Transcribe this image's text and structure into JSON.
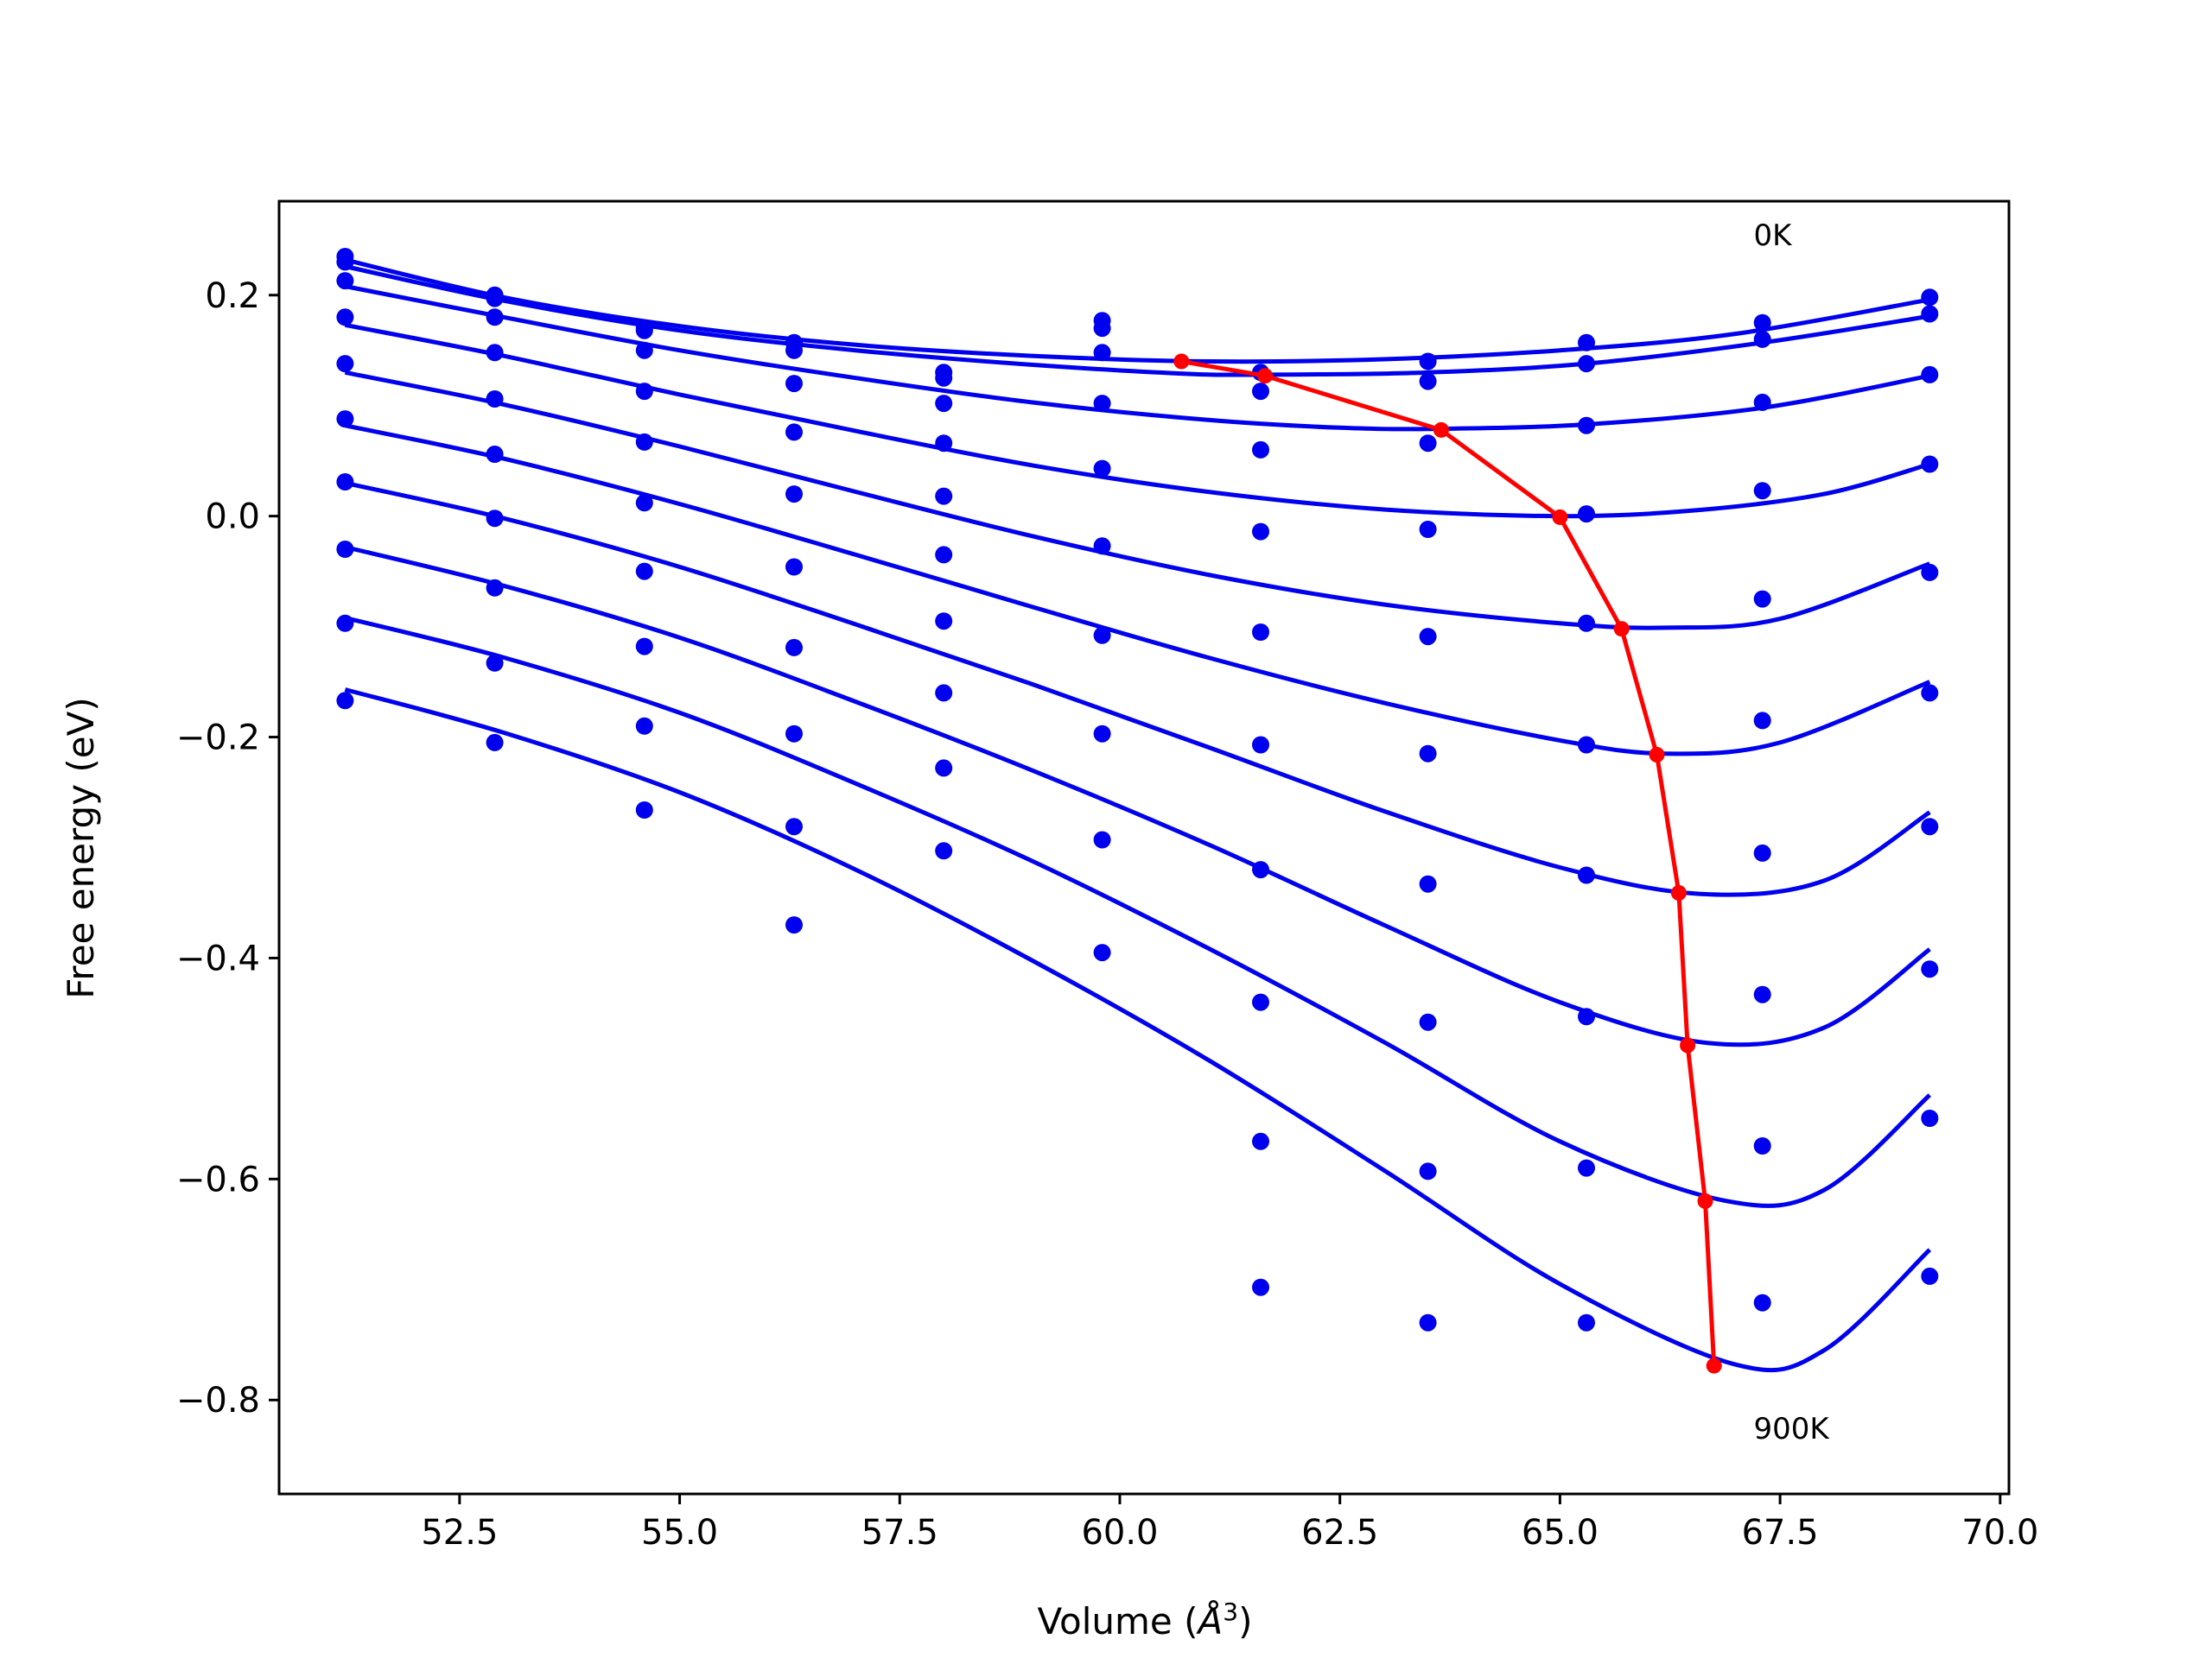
{
  "chart_data": {
    "type": "scatter",
    "title": "",
    "xlabel": "Volume (",
    "xlabel_unit": "Å",
    "xlabel_exp": "3",
    "xlabel_close": ")",
    "ylabel": "Free energy (eV)",
    "xlim": [
      50.45,
      70.1
    ],
    "ylim": [
      -0.885,
      0.285
    ],
    "xticks": [
      52.5,
      55.0,
      57.5,
      60.0,
      62.5,
      65.0,
      67.5,
      70.0
    ],
    "xtick_labels": [
      "52.5",
      "55.0",
      "57.5",
      "60.0",
      "62.5",
      "65.0",
      "67.5",
      "70.0"
    ],
    "yticks": [
      0.2,
      0.0,
      -0.2,
      -0.4,
      -0.6,
      -0.8
    ],
    "ytick_labels": [
      "0.2",
      "0.0",
      "−0.2",
      "−0.4",
      "−0.6",
      "−0.8"
    ],
    "grid": false,
    "colors": {
      "points": "#0000ee",
      "fits": "#0000ee",
      "minima": "#ff0000"
    },
    "annotations": [
      {
        "text": "0K",
        "x": 67.2,
        "y": 0.245
      },
      {
        "text": "900K",
        "x": 67.2,
        "y": -0.835
      }
    ],
    "volumes": [
      51.2,
      52.9,
      54.6,
      56.3,
      58.0,
      59.8,
      61.6,
      63.5,
      65.3,
      67.3,
      69.2
    ],
    "point_series": [
      [
        0.235,
        0.2,
        0.17,
        0.157,
        0.13,
        0.177,
        0.13,
        0.14,
        0.157,
        0.175,
        0.198
      ],
      [
        0.23,
        0.197,
        0.168,
        0.15,
        0.125,
        0.17,
        0.113,
        0.122,
        0.138,
        0.16,
        0.183
      ],
      [
        0.213,
        0.18,
        0.15,
        0.12,
        0.102,
        0.148,
        0.06,
        0.066,
        0.082,
        0.103,
        0.128
      ],
      [
        0.18,
        0.148,
        0.113,
        0.076,
        0.066,
        0.102,
        -0.014,
        -0.012,
        0.002,
        0.023,
        0.047
      ],
      [
        0.138,
        0.106,
        0.067,
        0.02,
        0.018,
        0.043,
        -0.105,
        -0.109,
        -0.097,
        -0.075,
        -0.051
      ],
      [
        0.088,
        0.056,
        0.012,
        -0.046,
        -0.035,
        -0.027,
        -0.207,
        -0.215,
        -0.207,
        -0.185,
        -0.16
      ],
      [
        0.031,
        -0.002,
        -0.05,
        -0.119,
        -0.095,
        -0.108,
        -0.32,
        -0.333,
        -0.325,
        -0.305,
        -0.281
      ],
      [
        -0.03,
        -0.065,
        -0.118,
        -0.197,
        -0.16,
        -0.197,
        -0.44,
        -0.458,
        -0.453,
        -0.433,
        -0.41
      ],
      [
        -0.097,
        -0.133,
        -0.19,
        -0.281,
        -0.228,
        -0.293,
        -0.566,
        -0.593,
        -0.59,
        -0.57,
        -0.545
      ],
      [
        -0.167,
        -0.205,
        -0.266,
        -0.37,
        -0.303,
        -0.395,
        -0.698,
        -0.73,
        -0.73,
        -0.712,
        -0.688
      ]
    ],
    "fit_curves": [
      [
        [
          51.2,
          0.232
        ],
        [
          53.0,
          0.198
        ],
        [
          55.0,
          0.172
        ],
        [
          57.0,
          0.155
        ],
        [
          59.0,
          0.145
        ],
        [
          61.0,
          0.14
        ],
        [
          63.0,
          0.142
        ],
        [
          65.0,
          0.15
        ],
        [
          67.0,
          0.165
        ],
        [
          69.2,
          0.196
        ]
      ],
      [
        [
          51.2,
          0.226
        ],
        [
          53.0,
          0.195
        ],
        [
          55.0,
          0.168
        ],
        [
          57.0,
          0.15
        ],
        [
          59.0,
          0.137
        ],
        [
          60.7,
          0.129
        ],
        [
          61.6,
          0.128
        ],
        [
          63.5,
          0.13
        ],
        [
          65.3,
          0.138
        ],
        [
          67.3,
          0.157
        ],
        [
          69.2,
          0.181
        ]
      ],
      [
        [
          51.2,
          0.208
        ],
        [
          53.0,
          0.18
        ],
        [
          55.0,
          0.15
        ],
        [
          57.0,
          0.125
        ],
        [
          59.0,
          0.103
        ],
        [
          61.0,
          0.087
        ],
        [
          62.5,
          0.08
        ],
        [
          63.6,
          0.079
        ],
        [
          65.3,
          0.083
        ],
        [
          67.3,
          0.098
        ],
        [
          69.2,
          0.127
        ]
      ],
      [
        [
          51.2,
          0.173
        ],
        [
          53.0,
          0.145
        ],
        [
          55.0,
          0.11
        ],
        [
          57.0,
          0.077
        ],
        [
          59.0,
          0.046
        ],
        [
          61.0,
          0.022
        ],
        [
          63.0,
          0.006
        ],
        [
          65.0,
          0.0
        ],
        [
          66.5,
          0.005
        ],
        [
          68.0,
          0.02
        ],
        [
          69.2,
          0.047
        ]
      ],
      [
        [
          51.2,
          0.13
        ],
        [
          53.0,
          0.101
        ],
        [
          55.0,
          0.063
        ],
        [
          57.0,
          0.022
        ],
        [
          59.0,
          -0.018
        ],
        [
          61.0,
          -0.053
        ],
        [
          63.0,
          -0.08
        ],
        [
          65.0,
          -0.097
        ],
        [
          66.2,
          -0.101
        ],
        [
          67.5,
          -0.093
        ],
        [
          69.2,
          -0.043
        ]
      ],
      [
        [
          51.2,
          0.082
        ],
        [
          53.0,
          0.052
        ],
        [
          55.0,
          0.011
        ],
        [
          57.0,
          -0.035
        ],
        [
          59.0,
          -0.082
        ],
        [
          61.0,
          -0.128
        ],
        [
          63.0,
          -0.169
        ],
        [
          65.0,
          -0.203
        ],
        [
          66.2,
          -0.215
        ],
        [
          67.5,
          -0.205
        ],
        [
          69.2,
          -0.15
        ]
      ],
      [
        [
          51.2,
          0.03
        ],
        [
          53.0,
          -0.002
        ],
        [
          55.0,
          -0.046
        ],
        [
          57.0,
          -0.098
        ],
        [
          59.0,
          -0.152
        ],
        [
          61.0,
          -0.209
        ],
        [
          63.0,
          -0.267
        ],
        [
          65.0,
          -0.318
        ],
        [
          66.6,
          -0.342
        ],
        [
          68.0,
          -0.33
        ],
        [
          69.2,
          -0.268
        ]
      ],
      [
        [
          51.2,
          -0.028
        ],
        [
          53.0,
          -0.063
        ],
        [
          55.0,
          -0.11
        ],
        [
          57.0,
          -0.168
        ],
        [
          59.0,
          -0.23
        ],
        [
          61.0,
          -0.297
        ],
        [
          63.0,
          -0.37
        ],
        [
          65.0,
          -0.44
        ],
        [
          66.7,
          -0.477
        ],
        [
          68.0,
          -0.463
        ],
        [
          69.2,
          -0.392
        ]
      ],
      [
        [
          51.2,
          -0.092
        ],
        [
          53.0,
          -0.128
        ],
        [
          55.0,
          -0.178
        ],
        [
          57.0,
          -0.242
        ],
        [
          59.0,
          -0.312
        ],
        [
          61.0,
          -0.391
        ],
        [
          63.0,
          -0.476
        ],
        [
          65.0,
          -0.566
        ],
        [
          66.9,
          -0.62
        ],
        [
          68.0,
          -0.61
        ],
        [
          69.2,
          -0.524
        ]
      ],
      [
        [
          51.2,
          -0.157
        ],
        [
          53.0,
          -0.196
        ],
        [
          55.0,
          -0.25
        ],
        [
          57.0,
          -0.32
        ],
        [
          59.0,
          -0.402
        ],
        [
          61.0,
          -0.492
        ],
        [
          63.0,
          -0.592
        ],
        [
          65.0,
          -0.695
        ],
        [
          67.0,
          -0.768
        ],
        [
          68.0,
          -0.755
        ],
        [
          69.2,
          -0.664
        ]
      ]
    ],
    "minima_line": {
      "x": [
        60.7,
        61.65,
        63.65,
        65.0,
        65.7,
        66.1,
        66.35,
        66.45,
        66.65,
        66.75
      ],
      "y": [
        0.14,
        0.127,
        0.078,
        -0.001,
        -0.102,
        -0.216,
        -0.341,
        -0.479,
        -0.62,
        -0.769
      ]
    }
  }
}
